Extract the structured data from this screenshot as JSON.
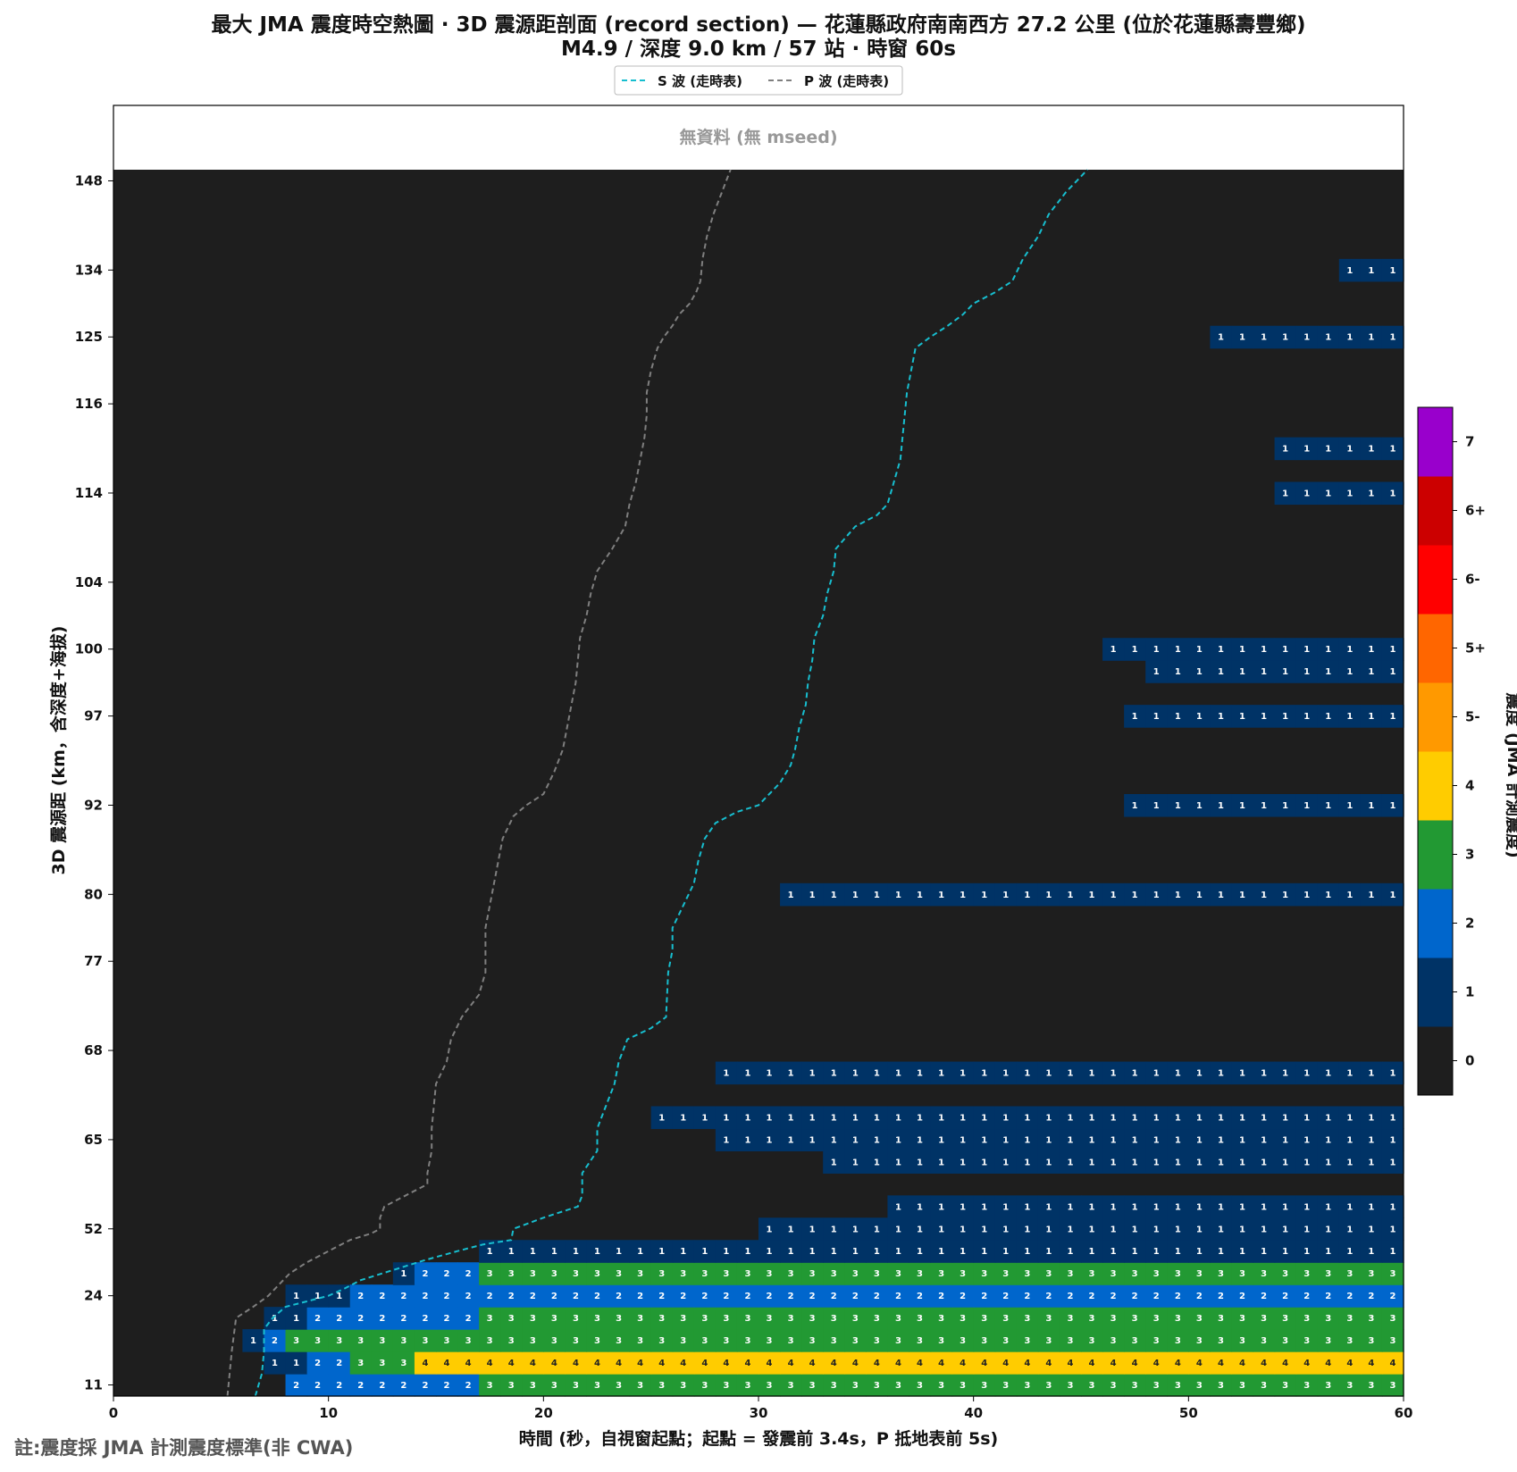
{
  "chart_data": {
    "type": "heatmap",
    "title_line1": "最大 JMA 震度時空熱圖 · 3D 震源距剖面 (record section) — 花蓮縣政府南南西方  27.2  公里 (位於花蓮縣壽豐鄉)",
    "title_line2": "M4.9 / 深度 9.0 km / 57 站 · 時窗 60s",
    "xlabel": "時間 (秒，自視窗起點；起點 = 發震前 3.4s，P 抵地表前 5s)",
    "ylabel": "3D 震源距 (km，含深度+海拔)",
    "xlim": [
      0,
      60
    ],
    "x_ticks": [
      0,
      10,
      20,
      30,
      40,
      50,
      60
    ],
    "y_ticks": [
      {
        "label": "11",
        "row": 0
      },
      {
        "label": "24",
        "row": 4
      },
      {
        "label": "52",
        "row": 7
      },
      {
        "label": "65",
        "row": 11
      },
      {
        "label": "68",
        "row": 15
      },
      {
        "label": "77",
        "row": 19
      },
      {
        "label": "80",
        "row": 22
      },
      {
        "label": "92",
        "row": 26
      },
      {
        "label": "97",
        "row": 30
      },
      {
        "label": "100",
        "row": 33
      },
      {
        "label": "104",
        "row": 36
      },
      {
        "label": "114",
        "row": 40
      },
      {
        "label": "116",
        "row": 44
      },
      {
        "label": "125",
        "row": 47
      },
      {
        "label": "134",
        "row": 50
      },
      {
        "label": "148",
        "row": 54
      }
    ],
    "row_count": 55,
    "no_data_label": "無資料 (無 mseed)",
    "legend": [
      {
        "name": "S 波 (走時表)",
        "color": "#17becf"
      },
      {
        "name": "P 波 (走時表)",
        "color": "#7f7f7f"
      }
    ],
    "colorbar": {
      "label": "震度 (JMA 計測震度)",
      "levels": [
        "0",
        "1",
        "2",
        "3",
        "4",
        "5-",
        "5+",
        "6-",
        "6+",
        "7"
      ],
      "colors": [
        "#1e1e1e",
        "#003366",
        "#0066cc",
        "#229933",
        "#ffcc00",
        "#ff9900",
        "#ff6600",
        "#ff0000",
        "#cc0000",
        "#9900cc"
      ]
    },
    "segments": [
      {
        "row": 0,
        "start": 8,
        "end": 17,
        "value": 2
      },
      {
        "row": 0,
        "start": 17,
        "end": 60,
        "value": 3
      },
      {
        "row": 1,
        "start": 7,
        "end": 9,
        "value": 1
      },
      {
        "row": 1,
        "start": 9,
        "end": 11,
        "value": 2
      },
      {
        "row": 1,
        "start": 11,
        "end": 14,
        "value": 3
      },
      {
        "row": 1,
        "start": 14,
        "end": 60,
        "value": 4
      },
      {
        "row": 2,
        "start": 6,
        "end": 7,
        "value": 1
      },
      {
        "row": 2,
        "start": 7,
        "end": 8,
        "value": 2
      },
      {
        "row": 2,
        "start": 8,
        "end": 60,
        "value": 3
      },
      {
        "row": 3,
        "start": 7,
        "end": 9,
        "value": 1
      },
      {
        "row": 3,
        "start": 9,
        "end": 17,
        "value": 2
      },
      {
        "row": 3,
        "start": 17,
        "end": 60,
        "value": 3
      },
      {
        "row": 4,
        "start": 8,
        "end": 11,
        "value": 1
      },
      {
        "row": 4,
        "start": 11,
        "end": 60,
        "value": 2
      },
      {
        "row": 5,
        "start": 13,
        "end": 14,
        "value": 1
      },
      {
        "row": 5,
        "start": 14,
        "end": 17,
        "value": 2
      },
      {
        "row": 5,
        "start": 17,
        "end": 60,
        "value": 3
      },
      {
        "row": 6,
        "start": 17,
        "end": 60,
        "value": 1
      },
      {
        "row": 7,
        "start": 30,
        "end": 60,
        "value": 1
      },
      {
        "row": 8,
        "start": 36,
        "end": 60,
        "value": 1
      },
      {
        "row": 10,
        "start": 33,
        "end": 60,
        "value": 1
      },
      {
        "row": 11,
        "start": 28,
        "end": 60,
        "value": 1
      },
      {
        "row": 12,
        "start": 25,
        "end": 60,
        "value": 1
      },
      {
        "row": 14,
        "start": 28,
        "end": 60,
        "value": 1
      },
      {
        "row": 22,
        "start": 31,
        "end": 60,
        "value": 1
      },
      {
        "row": 26,
        "start": 47,
        "end": 60,
        "value": 1
      },
      {
        "row": 30,
        "start": 47,
        "end": 60,
        "value": 1
      },
      {
        "row": 32,
        "start": 48,
        "end": 60,
        "value": 1
      },
      {
        "row": 33,
        "start": 46,
        "end": 60,
        "value": 1
      },
      {
        "row": 40,
        "start": 54,
        "end": 60,
        "value": 1
      },
      {
        "row": 42,
        "start": 54,
        "end": 60,
        "value": 1
      },
      {
        "row": 47,
        "start": 51,
        "end": 60,
        "value": 1
      },
      {
        "row": 50,
        "start": 57,
        "end": 60,
        "value": 1
      }
    ],
    "p_wave": [
      [
        5.3,
        0
      ],
      [
        5.5,
        2
      ],
      [
        5.7,
        3.5
      ],
      [
        6.5,
        4
      ],
      [
        7.2,
        4.5
      ],
      [
        7.7,
        5
      ],
      [
        8.2,
        5.5
      ],
      [
        9,
        6
      ],
      [
        10,
        6.5
      ],
      [
        11,
        7
      ],
      [
        12,
        7.3
      ],
      [
        12.4,
        7.5
      ],
      [
        12.4,
        8
      ],
      [
        12.6,
        8.5
      ],
      [
        13.6,
        9
      ],
      [
        14.6,
        9.5
      ],
      [
        14.6,
        10
      ],
      [
        14.8,
        11
      ],
      [
        14.8,
        12
      ],
      [
        14.9,
        13
      ],
      [
        15,
        14
      ],
      [
        15.5,
        15
      ],
      [
        15.7,
        16
      ],
      [
        16.2,
        17
      ],
      [
        17,
        18
      ],
      [
        17.3,
        19
      ],
      [
        17.3,
        21
      ],
      [
        17.5,
        22
      ],
      [
        17.7,
        23
      ],
      [
        17.9,
        24
      ],
      [
        18.1,
        25
      ],
      [
        18.6,
        26
      ],
      [
        19.2,
        26.5
      ],
      [
        20,
        27
      ],
      [
        20.5,
        28
      ],
      [
        20.9,
        29
      ],
      [
        21.1,
        30
      ],
      [
        21.3,
        31
      ],
      [
        21.5,
        32
      ],
      [
        21.6,
        33
      ],
      [
        21.7,
        34
      ],
      [
        22.0,
        35
      ],
      [
        22.2,
        36
      ],
      [
        22.5,
        37
      ],
      [
        23.2,
        38
      ],
      [
        23.8,
        39
      ],
      [
        24.0,
        40
      ],
      [
        24.3,
        41
      ],
      [
        24.5,
        42
      ],
      [
        24.7,
        43
      ],
      [
        24.8,
        44
      ],
      [
        24.8,
        45
      ],
      [
        25.0,
        46
      ],
      [
        25.3,
        47
      ],
      [
        25.6,
        47.5
      ],
      [
        26.0,
        48
      ],
      [
        26.3,
        48.5
      ],
      [
        26.8,
        49
      ],
      [
        27.1,
        49.5
      ],
      [
        27.3,
        50
      ],
      [
        27.4,
        51
      ],
      [
        27.6,
        52
      ],
      [
        27.9,
        53
      ],
      [
        28.3,
        54
      ],
      [
        28.7,
        55
      ]
    ],
    "s_wave": [
      [
        6.6,
        0
      ],
      [
        6.9,
        1
      ],
      [
        7.0,
        2
      ],
      [
        7.0,
        3
      ],
      [
        7.4,
        3.5
      ],
      [
        8.0,
        4
      ],
      [
        9.2,
        4.3
      ],
      [
        10.0,
        4.5
      ],
      [
        10.7,
        4.8
      ],
      [
        11.5,
        5.2
      ],
      [
        12.5,
        5.5
      ],
      [
        13.5,
        5.8
      ],
      [
        14.5,
        6.1
      ],
      [
        16.0,
        6.5
      ],
      [
        17.2,
        6.8
      ],
      [
        18.5,
        7
      ],
      [
        18.6,
        7.5
      ],
      [
        20,
        8
      ],
      [
        21.6,
        8.5
      ],
      [
        21.8,
        9
      ],
      [
        21.8,
        10
      ],
      [
        22.5,
        11
      ],
      [
        22.5,
        12
      ],
      [
        22.9,
        13
      ],
      [
        23.3,
        14
      ],
      [
        23.5,
        15
      ],
      [
        23.9,
        16
      ],
      [
        25.0,
        16.5
      ],
      [
        25.7,
        17
      ],
      [
        25.8,
        19
      ],
      [
        26.0,
        20
      ],
      [
        26.0,
        21
      ],
      [
        26.5,
        22
      ],
      [
        27.0,
        23
      ],
      [
        27.2,
        24
      ],
      [
        27.5,
        25
      ],
      [
        28.0,
        25.7
      ],
      [
        29.0,
        26.2
      ],
      [
        30.0,
        26.5
      ],
      [
        31.0,
        27.5
      ],
      [
        31.5,
        28.3
      ],
      [
        31.7,
        29
      ],
      [
        31.9,
        30
      ],
      [
        32.2,
        31
      ],
      [
        32.3,
        32
      ],
      [
        32.5,
        33
      ],
      [
        32.6,
        34
      ],
      [
        33.0,
        35
      ],
      [
        33.2,
        36
      ],
      [
        33.5,
        37
      ],
      [
        33.6,
        38
      ],
      [
        34.5,
        39
      ],
      [
        35.5,
        39.5
      ],
      [
        36.0,
        40
      ],
      [
        36.3,
        41
      ],
      [
        36.6,
        42
      ],
      [
        36.7,
        43
      ],
      [
        36.8,
        44
      ],
      [
        36.9,
        45
      ],
      [
        37.1,
        46
      ],
      [
        37.3,
        47
      ],
      [
        38.0,
        47.5
      ],
      [
        38.8,
        48
      ],
      [
        39.5,
        48.5
      ],
      [
        40,
        49
      ],
      [
        41,
        49.5
      ],
      [
        41.8,
        50
      ],
      [
        42.3,
        51
      ],
      [
        43.0,
        52
      ],
      [
        43.5,
        53
      ],
      [
        44.3,
        54
      ],
      [
        45.3,
        55
      ]
    ]
  },
  "footnote": "註:震度採 JMA 計測震度標準(非 CWA)"
}
